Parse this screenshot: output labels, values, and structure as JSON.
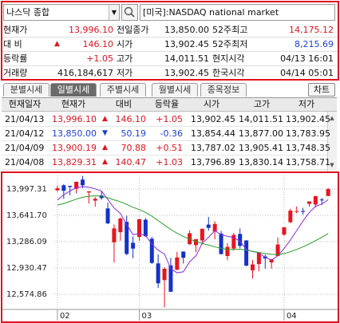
{
  "search": {
    "market": "나스닥 종합",
    "name": "[미국]:NASDAQ national market"
  },
  "quote": {
    "rows": [
      [
        {
          "label": "현재가",
          "value": "13,996.10",
          "color": "#e0141e"
        },
        {
          "label": "전일종가",
          "value": "13,850.00"
        },
        {
          "label": "52주최고",
          "value": "14,175.12",
          "color": "#e0141e"
        }
      ],
      [
        {
          "label": "대 비",
          "sign": "▲",
          "value": "146.10",
          "color": "#e0141e"
        },
        {
          "label": "시가",
          "value": "13,902.45"
        },
        {
          "label": "52주최저",
          "value": "8,215.69",
          "color": "#1c3fd6"
        }
      ],
      [
        {
          "label": "등락률",
          "value": "+1.05",
          "color": "#e0141e"
        },
        {
          "label": "고가",
          "value": "14,011.51"
        },
        {
          "label": "현지시각",
          "value": "04/13 16:01"
        }
      ],
      [
        {
          "label": "거래량",
          "value": "416,184,617"
        },
        {
          "label": "저가",
          "value": "13,902.45"
        },
        {
          "label": "한국시각",
          "value": "04/14 05:01"
        }
      ]
    ]
  },
  "tabs": {
    "items": [
      "분별시세",
      "일별시세",
      "주별시세",
      "월별시세",
      "종목정보"
    ],
    "selected": 1,
    "button": "차트"
  },
  "table": {
    "header": [
      "현재일자",
      "현재가",
      "대비",
      "등락율",
      "시가",
      "고가",
      "저가"
    ],
    "up_color": "#e0141e",
    "down_color": "#1c3fd6",
    "rows": [
      [
        "21/04/13",
        "13,996.10",
        "▲",
        "146.10",
        "+1.05",
        "13,902.45",
        "14,011.51",
        "13,902.45"
      ],
      [
        "21/04/12",
        "13,850.00",
        "▼",
        "50.19",
        "-0.36",
        "13,854.44",
        "13,877.00",
        "13,783.95"
      ],
      [
        "21/04/09",
        "13,900.19",
        "▲",
        "70.88",
        "+0.51",
        "13,787.02",
        "13,905.41",
        "13,748.35"
      ],
      [
        "21/04/08",
        "13,829.31",
        "▲",
        "140.47",
        "+1.03",
        "13,796.89",
        "13,830.14",
        "13,758.71"
      ]
    ]
  },
  "chart_data": {
    "type": "candlestick",
    "open": [
      13980,
      14047,
      14040,
      13999,
      14124,
      13950,
      13840,
      13910,
      13735,
      13277,
      13414,
      13553,
      13270,
      13349,
      13582,
      13325,
      12992,
      12766,
      12965,
      12908,
      13152,
      13252,
      13239,
      13302,
      13516,
      13424,
      13395,
      13092,
      13192,
      13390,
      13302,
      12899,
      12983,
      13085,
      13005,
      13092,
      13381,
      13549,
      13690,
      13700,
      13796.89,
      13787.02,
      13854.44,
      13902.45
    ],
    "high": [
      14041,
      14064,
      14040,
      14096,
      14175,
      13966,
      13888,
      13966,
      13812,
      13518,
      13613,
      13637,
      13356,
      13589,
      13605,
      13350,
      13115,
      12942,
      13067,
      13150,
      13154,
      13440,
      13320,
      13460,
      13620,
      13563,
      13431,
      13265,
      13406,
      13465,
      13305,
      13040,
      13144,
      13113,
      13047,
      13343,
      13481,
      13730,
      13763,
      13743,
      13830.14,
      13905.41,
      13877.0,
      14011.51
    ],
    "low": [
      13960,
      13864,
      13911,
      13937,
      14007,
      13800,
      13758,
      13850,
      13523,
      13003,
      13299,
      13102,
      13060,
      13299,
      13348,
      12986,
      12661,
      12397,
      12609,
      12898,
      12990,
      13241,
      13145,
      13248,
      13434,
      13318,
      13115,
      13034,
      13167,
      13196,
      12955,
      12787,
      12885,
      12919,
      12921,
      13091,
      13364,
      13536,
      13667,
      13651,
      13758.71,
      13748.35,
      13783.95,
      13902.45
    ],
    "close": [
      14007,
      13973,
      14025,
      14095,
      14047,
      13965,
      13865,
      13874,
      13533,
      13465,
      13598,
      13119,
      13192,
      13589,
      13359,
      12998,
      12723,
      12920,
      12609,
      13073,
      13068,
      13399,
      13320,
      13460,
      13472,
      13525,
      13117,
      13215,
      13377,
      13228,
      12962,
      12978,
      13139,
      13059,
      13045,
      13247,
      13480,
      13705,
      13699,
      13688,
      13829.31,
      13900.19,
      13850.0,
      13996.1
    ],
    "up_color": "#e8141e",
    "down_color": "#1432c8",
    "lines": [
      {
        "color": "#8a2be2",
        "values": [
          13847,
          13920,
          13970,
          14017,
          14029,
          14021,
          13999,
          13969,
          13857,
          13740,
          13667,
          13518,
          13381,
          13393,
          13371,
          13251,
          13172,
          13118,
          12922,
          12865,
          12879,
          13014,
          13094,
          13264,
          13344,
          13435,
          13379,
          13358,
          13341,
          13292,
          13180,
          13152,
          13137,
          13073,
          13037,
          13094,
          13194,
          13307,
          13435,
          13564,
          13680,
          13764,
          13793,
          13853
        ]
      },
      {
        "color": "#2a9d2a",
        "values": [
          13780,
          13800,
          13830,
          13860,
          13885,
          13900,
          13905,
          13900,
          13880,
          13850,
          13825,
          13790,
          13750,
          13720,
          13680,
          13630,
          13570,
          13510,
          13450,
          13400,
          13355,
          13320,
          13290,
          13260,
          13240,
          13215,
          13195,
          13180,
          13180,
          13185,
          13170,
          13155,
          13140,
          13125,
          13115,
          13110,
          13125,
          13150,
          13180,
          13215,
          13255,
          13300,
          13345,
          13395
        ]
      }
    ],
    "xlim": [
      -0.5,
      44.5
    ],
    "xticks": [
      {
        "value": 0,
        "label": "02"
      },
      {
        "value": 13,
        "label": "03"
      },
      {
        "value": 36,
        "label": "04"
      }
    ],
    "ylim": [
      12370,
      14180
    ],
    "yticks": [
      {
        "value": 13997.31,
        "label": "13,997.31"
      },
      {
        "value": 13641.7,
        "label": "13,641.70"
      },
      {
        "value": 13286.09,
        "label": "13,286.09"
      },
      {
        "value": 12930.47,
        "label": "12,930.47"
      },
      {
        "value": 12574.86,
        "label": "12,574.86"
      }
    ],
    "grid": true
  }
}
